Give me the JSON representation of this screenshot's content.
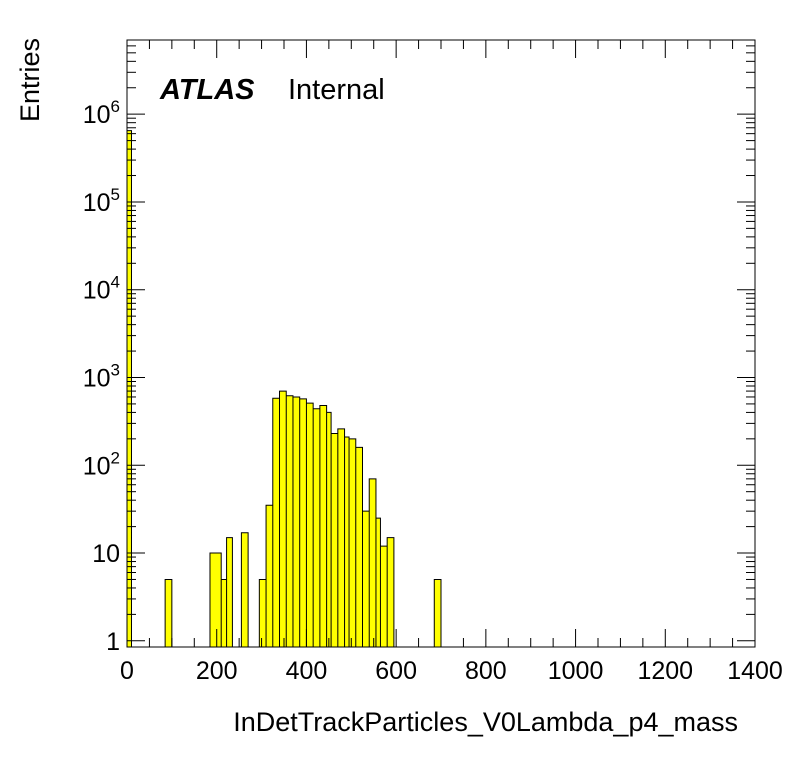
{
  "chart_data": {
    "type": "bar",
    "title": "",
    "xlabel": "InDetTrackParticles_V0Lambda_p4_mass",
    "ylabel": "Entries",
    "xlim": [
      0,
      1400
    ],
    "ylim": [
      0.85,
      7000000
    ],
    "y_scale": "log",
    "grid": false,
    "fill_color": "#ffff00",
    "line_color": "#000000",
    "label": {
      "atlas": "ATLAS",
      "status": "Internal"
    },
    "x_ticks": [
      "0",
      "200",
      "400",
      "600",
      "800",
      "1000",
      "1200",
      "1400"
    ],
    "y_ticks": [
      {
        "value": 1,
        "base": "1",
        "exp": ""
      },
      {
        "value": 10,
        "base": "10",
        "exp": ""
      },
      {
        "value": 100,
        "base": "10",
        "exp": "2"
      },
      {
        "value": 1000,
        "base": "10",
        "exp": "3"
      },
      {
        "value": 10000,
        "base": "10",
        "exp": "4"
      },
      {
        "value": 100000,
        "base": "10",
        "exp": "5"
      },
      {
        "value": 1000000,
        "base": "10",
        "exp": "6"
      }
    ],
    "bins": [
      {
        "x0": 0,
        "x1": 10,
        "y": 650000
      },
      {
        "x0": 85,
        "x1": 100,
        "y": 5
      },
      {
        "x0": 185,
        "x1": 210,
        "y": 10
      },
      {
        "x0": 210,
        "x1": 222,
        "y": 5
      },
      {
        "x0": 222,
        "x1": 235,
        "y": 15
      },
      {
        "x0": 255,
        "x1": 270,
        "y": 17
      },
      {
        "x0": 295,
        "x1": 310,
        "y": 5
      },
      {
        "x0": 310,
        "x1": 325,
        "y": 35
      },
      {
        "x0": 325,
        "x1": 340,
        "y": 580
      },
      {
        "x0": 340,
        "x1": 355,
        "y": 700
      },
      {
        "x0": 355,
        "x1": 370,
        "y": 620
      },
      {
        "x0": 370,
        "x1": 385,
        "y": 600
      },
      {
        "x0": 385,
        "x1": 400,
        "y": 570
      },
      {
        "x0": 400,
        "x1": 415,
        "y": 510
      },
      {
        "x0": 415,
        "x1": 430,
        "y": 440
      },
      {
        "x0": 430,
        "x1": 445,
        "y": 480
      },
      {
        "x0": 445,
        "x1": 455,
        "y": 400
      },
      {
        "x0": 455,
        "x1": 470,
        "y": 230
      },
      {
        "x0": 470,
        "x1": 485,
        "y": 260
      },
      {
        "x0": 485,
        "x1": 495,
        "y": 210
      },
      {
        "x0": 495,
        "x1": 510,
        "y": 200
      },
      {
        "x0": 510,
        "x1": 525,
        "y": 160
      },
      {
        "x0": 525,
        "x1": 540,
        "y": 30
      },
      {
        "x0": 540,
        "x1": 555,
        "y": 70
      },
      {
        "x0": 555,
        "x1": 565,
        "y": 25
      },
      {
        "x0": 565,
        "x1": 580,
        "y": 12
      },
      {
        "x0": 580,
        "x1": 595,
        "y": 15
      },
      {
        "x0": 685,
        "x1": 700,
        "y": 5
      }
    ]
  }
}
